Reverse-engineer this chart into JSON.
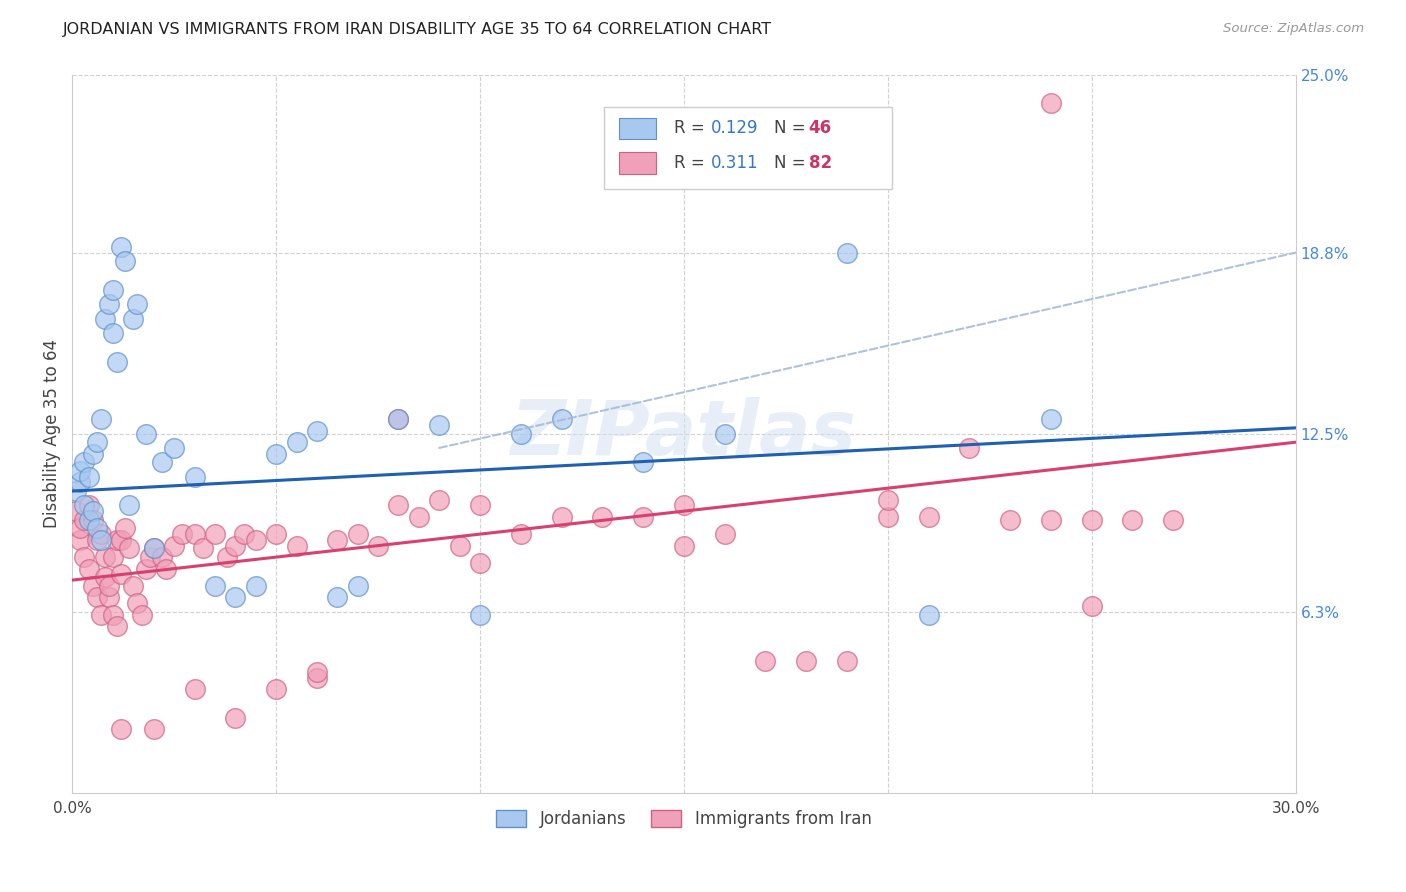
{
  "title": "JORDANIAN VS IMMIGRANTS FROM IRAN DISABILITY AGE 35 TO 64 CORRELATION CHART",
  "source": "Source: ZipAtlas.com",
  "ylabel": "Disability Age 35 to 64",
  "xlim": [
    0.0,
    0.3
  ],
  "ylim": [
    0.0,
    0.25
  ],
  "xticks": [
    0.0,
    0.05,
    0.1,
    0.15,
    0.2,
    0.25,
    0.3
  ],
  "xtick_labels": [
    "0.0%",
    "",
    "",
    "",
    "",
    "",
    "30.0%"
  ],
  "ytick_labels_right": [
    "6.3%",
    "12.5%",
    "18.8%",
    "25.0%"
  ],
  "ytick_values_right": [
    0.063,
    0.125,
    0.188,
    0.25
  ],
  "group1_color": "#a8c8f0",
  "group1_edge": "#6090c8",
  "group2_color": "#f0a0b8",
  "group2_edge": "#d06080",
  "trend1_color": "#2060b0",
  "trend2_color": "#d84070",
  "dash_color": "#a0b8d8",
  "watermark": "ZIPatlas",
  "background_color": "#ffffff",
  "grid_color": "#d0d0d0",
  "title_color": "#222222",
  "axis_label_color": "#444444",
  "right_tick_color": "#4488dd",
  "legend_R_color": "#3377cc",
  "legend_N_color": "#cc3366",
  "blue_trend_start_y": 0.105,
  "blue_trend_end_y": 0.127,
  "pink_trend_start_y": 0.074,
  "pink_trend_end_y": 0.122,
  "dash_line_x": [
    0.09,
    0.3
  ],
  "dash_line_y": [
    0.12,
    0.188
  ],
  "jordanians_x": [
    0.001,
    0.002,
    0.002,
    0.003,
    0.003,
    0.004,
    0.004,
    0.005,
    0.005,
    0.006,
    0.006,
    0.007,
    0.007,
    0.008,
    0.009,
    0.01,
    0.01,
    0.011,
    0.012,
    0.013,
    0.014,
    0.015,
    0.016,
    0.018,
    0.02,
    0.022,
    0.025,
    0.03,
    0.035,
    0.04,
    0.045,
    0.05,
    0.055,
    0.06,
    0.065,
    0.07,
    0.08,
    0.09,
    0.1,
    0.11,
    0.12,
    0.14,
    0.16,
    0.19,
    0.21,
    0.24
  ],
  "jordanians_y": [
    0.105,
    0.108,
    0.112,
    0.1,
    0.115,
    0.095,
    0.11,
    0.098,
    0.118,
    0.092,
    0.122,
    0.088,
    0.13,
    0.165,
    0.17,
    0.16,
    0.175,
    0.15,
    0.19,
    0.185,
    0.1,
    0.165,
    0.17,
    0.125,
    0.085,
    0.115,
    0.12,
    0.11,
    0.072,
    0.068,
    0.072,
    0.118,
    0.122,
    0.126,
    0.068,
    0.072,
    0.13,
    0.128,
    0.062,
    0.125,
    0.13,
    0.115,
    0.125,
    0.188,
    0.062,
    0.13
  ],
  "iran_x": [
    0.001,
    0.002,
    0.002,
    0.003,
    0.003,
    0.004,
    0.004,
    0.005,
    0.005,
    0.006,
    0.006,
    0.007,
    0.007,
    0.008,
    0.008,
    0.009,
    0.009,
    0.01,
    0.01,
    0.011,
    0.011,
    0.012,
    0.012,
    0.013,
    0.014,
    0.015,
    0.016,
    0.017,
    0.018,
    0.019,
    0.02,
    0.022,
    0.023,
    0.025,
    0.027,
    0.03,
    0.032,
    0.035,
    0.038,
    0.04,
    0.042,
    0.045,
    0.05,
    0.055,
    0.06,
    0.065,
    0.07,
    0.075,
    0.08,
    0.085,
    0.09,
    0.095,
    0.1,
    0.11,
    0.12,
    0.13,
    0.14,
    0.15,
    0.16,
    0.17,
    0.18,
    0.19,
    0.2,
    0.21,
    0.22,
    0.23,
    0.24,
    0.25,
    0.26,
    0.27,
    0.012,
    0.02,
    0.03,
    0.04,
    0.05,
    0.06,
    0.08,
    0.1,
    0.15,
    0.2,
    0.25,
    0.24
  ],
  "iran_y": [
    0.098,
    0.088,
    0.092,
    0.082,
    0.095,
    0.078,
    0.1,
    0.072,
    0.095,
    0.068,
    0.088,
    0.062,
    0.09,
    0.075,
    0.082,
    0.068,
    0.072,
    0.062,
    0.082,
    0.058,
    0.088,
    0.076,
    0.088,
    0.092,
    0.085,
    0.072,
    0.066,
    0.062,
    0.078,
    0.082,
    0.085,
    0.082,
    0.078,
    0.086,
    0.09,
    0.09,
    0.085,
    0.09,
    0.082,
    0.086,
    0.09,
    0.088,
    0.09,
    0.086,
    0.04,
    0.088,
    0.09,
    0.086,
    0.1,
    0.096,
    0.102,
    0.086,
    0.08,
    0.09,
    0.096,
    0.096,
    0.096,
    0.086,
    0.09,
    0.046,
    0.046,
    0.046,
    0.096,
    0.096,
    0.12,
    0.095,
    0.095,
    0.095,
    0.095,
    0.095,
    0.022,
    0.022,
    0.036,
    0.026,
    0.036,
    0.042,
    0.13,
    0.1,
    0.1,
    0.102,
    0.065,
    0.24
  ]
}
